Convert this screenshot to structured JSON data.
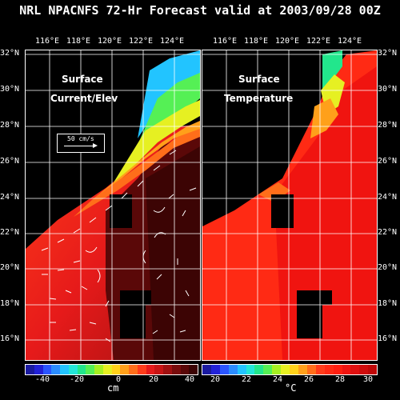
{
  "title": "NRL NPACNFS 72-Hr Forecast valid at 2003/09/28 00Z",
  "lon_labels": [
    "116°E",
    "118°E",
    "120°E",
    "122°E",
    "124°E"
  ],
  "lat_labels": [
    "32°N",
    "30°N",
    "28°N",
    "26°N",
    "24°N",
    "22°N",
    "20°N",
    "18°N",
    "16°N"
  ],
  "left_panel": {
    "line1": "Surface",
    "line2": "Current/Elev",
    "scale_label": "50 cm/s"
  },
  "right_panel": {
    "line1": "Surface",
    "line2": "Temperature"
  },
  "left_colorbar": {
    "ticks": [
      "-40",
      "-20",
      "0",
      "20",
      "40"
    ],
    "unit": "cm",
    "colors": [
      "#1a1aa0",
      "#2222d8",
      "#2a55ff",
      "#2a8cff",
      "#22c4ff",
      "#22e6d8",
      "#22e68c",
      "#55f055",
      "#a6f022",
      "#e6f022",
      "#ffd21a",
      "#ffa01a",
      "#ff6e1a",
      "#ff3c1a",
      "#e61a1a",
      "#c81414",
      "#a01010",
      "#780c0c",
      "#5a0808",
      "#3c0404"
    ]
  },
  "right_colorbar": {
    "ticks": [
      "20",
      "22",
      "24",
      "26",
      "28",
      "30"
    ],
    "unit": "°C",
    "colors": [
      "#1a1aa0",
      "#2222d8",
      "#2a55ff",
      "#2a8cff",
      "#22c4ff",
      "#22e6d8",
      "#22e68c",
      "#55f055",
      "#a6f022",
      "#e6f022",
      "#ffd21a",
      "#ffa01a",
      "#ff6e1a",
      "#ff3c1a",
      "#ff2a14",
      "#ff1e10",
      "#f01410",
      "#e01010",
      "#d00c0c",
      "#c00808"
    ]
  }
}
